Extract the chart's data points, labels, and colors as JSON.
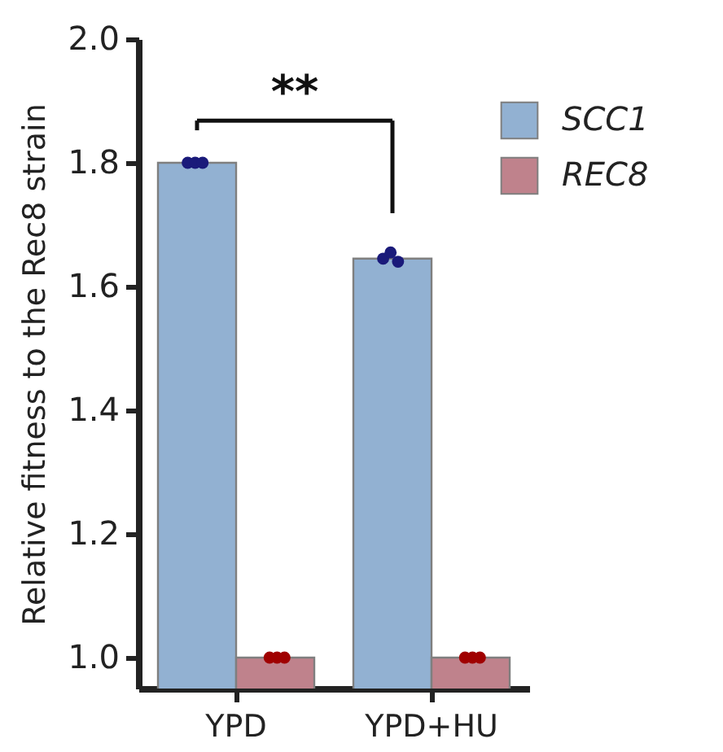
{
  "chart_data": {
    "type": "bar",
    "ylabel": "Relative fitness to the Rec8 strain",
    "categories": [
      "YPD",
      "YPD+HU"
    ],
    "series": [
      {
        "name": "SCC1",
        "color": "#92b1d2",
        "values": [
          1.8,
          1.645
        ]
      },
      {
        "name": "REC8",
        "color": "#bf828c",
        "values": [
          1.0,
          1.0
        ]
      },
      {
        "type": "scatter",
        "color": "#1a1a7a",
        "x": [
          "YPD",
          "YPD",
          "YPD",
          "YPD+HU",
          "YPD+HU",
          "YPD+HU"
        ],
        "values": [
          1.8,
          1.8,
          1.8,
          1.645,
          1.655,
          1.64
        ]
      },
      {
        "type": "scatter",
        "color": "#a00000",
        "x": [
          "YPD",
          "YPD",
          "YPD",
          "YPD+HU",
          "YPD+HU",
          "YPD+HU"
        ],
        "values": [
          1.0,
          1.0,
          1.0,
          1.0,
          1.0,
          1.0
        ]
      }
    ],
    "ylim": [
      0.95,
      2.0
    ],
    "yticks": [
      {
        "value": 1,
        "label": "1.0"
      },
      1.2,
      1.4,
      1.6,
      1.8,
      {
        "value": 2,
        "label": "2.0"
      }
    ],
    "annotations": [
      "**"
    ],
    "legend": "top right",
    "grid": false
  }
}
